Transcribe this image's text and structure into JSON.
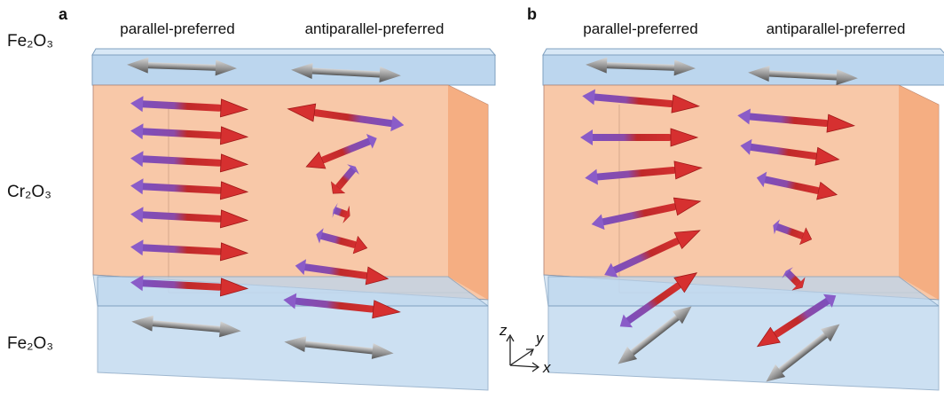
{
  "panels": [
    {
      "label": "a",
      "columns": [
        "parallel-preferred",
        "antiparallel-preferred"
      ]
    },
    {
      "label": "b",
      "columns": [
        "parallel-preferred",
        "antiparallel-preferred"
      ]
    }
  ],
  "layers": [
    "Fe₂O₃",
    "Cr₂O₃",
    "Fe₂O₃"
  ],
  "axes": [
    "z",
    "y",
    "x"
  ]
}
